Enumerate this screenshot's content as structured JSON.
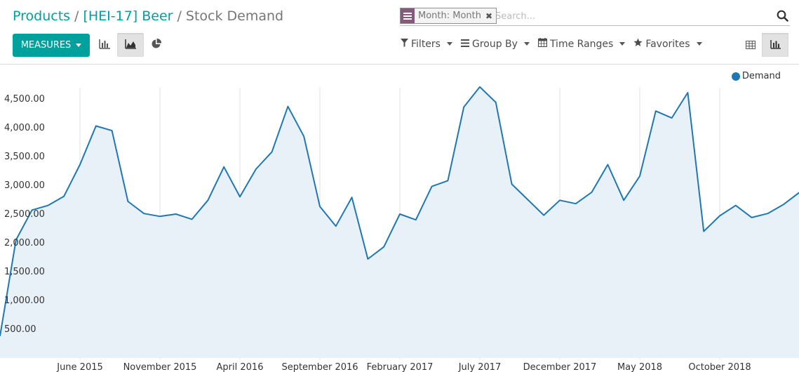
{
  "breadcrumb": {
    "level1": "Products",
    "level2": "[HEI-17] Beer",
    "current": "Stock Demand",
    "separator": "/"
  },
  "search": {
    "facet_label": "Month: Month",
    "facet_remove": "✖",
    "placeholder": "Search...",
    "value": ""
  },
  "toolbar": {
    "measures_label": "MEASURES",
    "filters_label": "Filters",
    "group_by_label": "Group By",
    "time_ranges_label": "Time Ranges",
    "favorites_label": "Favorites",
    "active_chart_mode": "line",
    "active_view": "graph"
  },
  "colors": {
    "accent": "#00a09d",
    "facet": "#875a7b",
    "series": "#1f77b4",
    "area": "#e9f1f8"
  },
  "chart_data": {
    "type": "area",
    "ylim": [
      0,
      4700
    ],
    "yticks": [
      {
        "value": 500,
        "label": "500.00"
      },
      {
        "value": 1000,
        "label": "1,000.00"
      },
      {
        "value": 1500,
        "label": "1,500.00"
      },
      {
        "value": 2000,
        "label": "2,000.00"
      },
      {
        "value": 2500,
        "label": "2,500.00"
      },
      {
        "value": 3000,
        "label": "3,000.00"
      },
      {
        "value": 3500,
        "label": "3,500.00"
      },
      {
        "value": 4000,
        "label": "4,000.00"
      },
      {
        "value": 4500,
        "label": "4,500.00"
      }
    ],
    "xtick_labels": [
      "June 2015",
      "November 2015",
      "April 2016",
      "September 2016",
      "February 2017",
      "July 2017",
      "December 2017",
      "May 2018",
      "October 2018"
    ],
    "xtick_indices": [
      5,
      10,
      15,
      20,
      25,
      30,
      35,
      40,
      45
    ],
    "legend_position": "top-right",
    "series": [
      {
        "name": "Demand",
        "values": [
          380,
          2050,
          2570,
          2650,
          2810,
          3360,
          4030,
          3950,
          2720,
          2510,
          2460,
          2500,
          2410,
          2740,
          3320,
          2800,
          3280,
          3580,
          4370,
          3850,
          2630,
          2290,
          2790,
          1720,
          1930,
          2500,
          2400,
          2980,
          3080,
          4360,
          4710,
          4440,
          3020,
          2750,
          2480,
          2740,
          2680,
          2880,
          3360,
          2740,
          3160,
          4290,
          4170,
          4610,
          2200,
          2470,
          2650,
          2440,
          2510,
          2670,
          2880
        ]
      }
    ]
  }
}
